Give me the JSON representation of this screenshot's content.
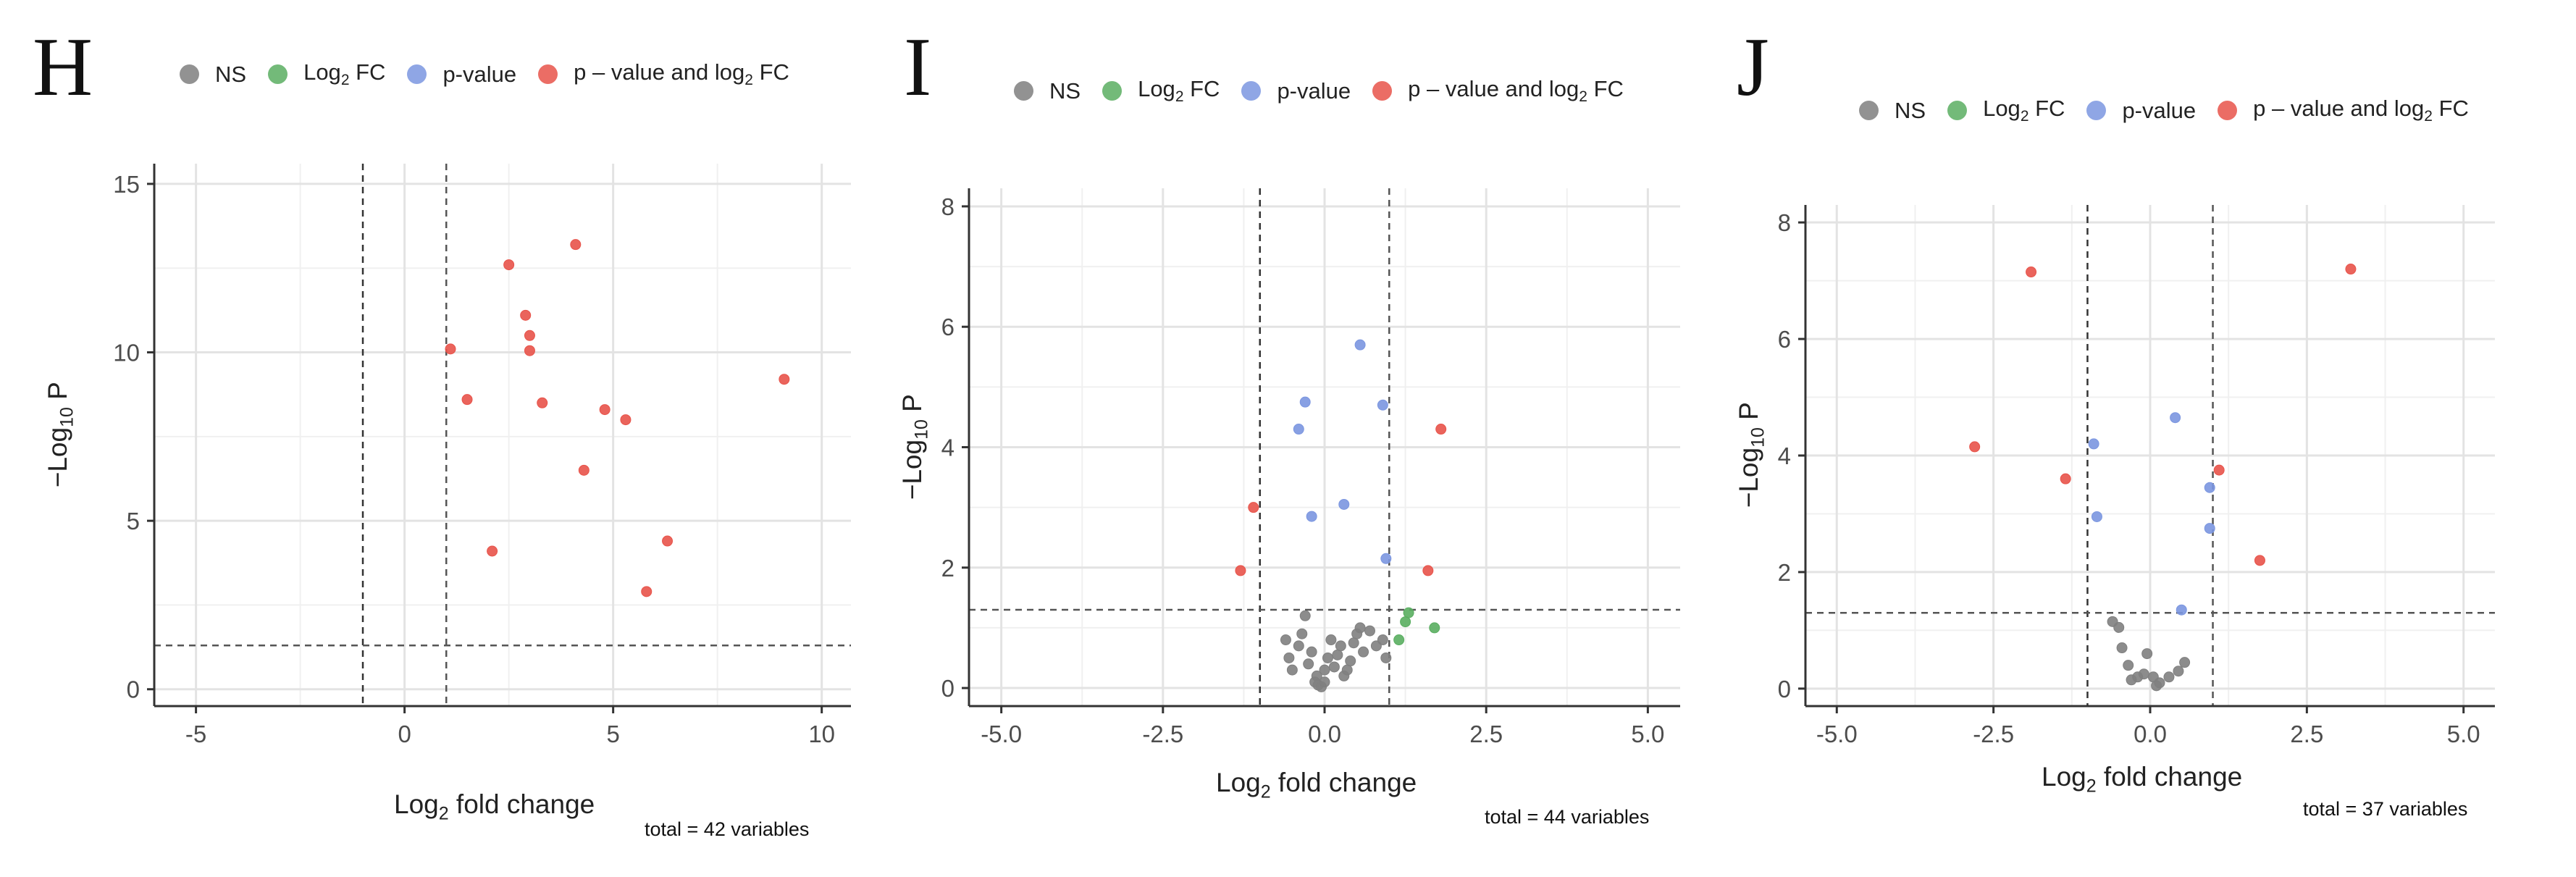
{
  "chart_data": [
    {
      "panel": "H",
      "type": "scatter",
      "legend": {
        "position": "top",
        "items": [
          {
            "label": "NS",
            "color": "#7f7f7f"
          },
          {
            "label_main": "Log",
            "label_sub": "2",
            "label_rest": " FC",
            "color": "#5aae61"
          },
          {
            "label": "p-value",
            "color": "#7b96e0"
          },
          {
            "label_main": "p – value and log",
            "label_sub": "2",
            "label_rest": " FC",
            "color": "#e8534a"
          }
        ]
      },
      "xlabel": {
        "main": "Log",
        "sub": "2",
        "rest": " fold change"
      },
      "ylabel": {
        "main": "−Log",
        "sub": "10",
        "rest": " P"
      },
      "xlim": [
        -6,
        10.7
      ],
      "ylim": [
        -0.5,
        15.6
      ],
      "xticks": [
        -5,
        0,
        5,
        10
      ],
      "xtick_labels": [
        "-5",
        "0",
        "5",
        "10"
      ],
      "yticks": [
        0,
        5,
        10,
        15
      ],
      "ytick_labels": [
        "0",
        "5",
        "10",
        "15"
      ],
      "vlines": [
        -1,
        1
      ],
      "hline": 1.3,
      "caption": "total = 42 variables",
      "series": [
        {
          "name": "p – value and log2 FC",
          "color": "#e8534a",
          "points": [
            [
              1.1,
              10.1
            ],
            [
              1.5,
              8.6
            ],
            [
              2.1,
              4.1
            ],
            [
              2.5,
              12.6
            ],
            [
              2.9,
              11.1
            ],
            [
              3.0,
              10.5
            ],
            [
              3.0,
              10.05
            ],
            [
              3.3,
              8.5
            ],
            [
              4.1,
              13.2
            ],
            [
              4.3,
              6.5
            ],
            [
              4.8,
              8.3
            ],
            [
              5.3,
              8.0
            ],
            [
              5.8,
              2.9
            ],
            [
              6.3,
              4.4
            ],
            [
              9.1,
              9.2
            ]
          ]
        }
      ]
    },
    {
      "panel": "I",
      "type": "scatter",
      "legend": {
        "position": "top",
        "items": [
          {
            "label": "NS",
            "color": "#7f7f7f"
          },
          {
            "label_main": "Log",
            "label_sub": "2",
            "label_rest": " FC",
            "color": "#5aae61"
          },
          {
            "label": "p-value",
            "color": "#7b96e0"
          },
          {
            "label_main": "p – value and log",
            "label_sub": "2",
            "label_rest": " FC",
            "color": "#e8534a"
          }
        ]
      },
      "xlabel": {
        "main": "Log",
        "sub": "2",
        "rest": " fold change"
      },
      "ylabel": {
        "main": "−Log",
        "sub": "10",
        "rest": " P"
      },
      "xlim": [
        -5.5,
        5.5
      ],
      "ylim": [
        -0.3,
        8.3
      ],
      "xticks": [
        -5,
        -2.5,
        0,
        2.5,
        5
      ],
      "xtick_labels": [
        "-5.0",
        "-2.5",
        "0.0",
        "2.5",
        "5.0"
      ],
      "yticks": [
        0,
        2,
        4,
        6,
        8
      ],
      "ytick_labels": [
        "0",
        "2",
        "4",
        "6",
        "8"
      ],
      "vlines": [
        -1,
        1
      ],
      "hline": 1.3,
      "caption": "total = 44 variables",
      "series": [
        {
          "name": "NS",
          "color": "#7f7f7f",
          "points": [
            [
              -0.6,
              0.8
            ],
            [
              -0.55,
              0.5
            ],
            [
              -0.5,
              0.3
            ],
            [
              -0.4,
              0.7
            ],
            [
              -0.35,
              0.9
            ],
            [
              -0.3,
              1.2
            ],
            [
              -0.25,
              0.4
            ],
            [
              -0.2,
              0.6
            ],
            [
              -0.15,
              0.1
            ],
            [
              -0.12,
              0.2
            ],
            [
              -0.1,
              0.05
            ],
            [
              -0.05,
              0.02
            ],
            [
              0.0,
              0.1
            ],
            [
              0.0,
              0.3
            ],
            [
              0.05,
              0.5
            ],
            [
              0.1,
              0.8
            ],
            [
              0.15,
              0.35
            ],
            [
              0.2,
              0.55
            ],
            [
              0.25,
              0.7
            ],
            [
              0.3,
              0.2
            ],
            [
              0.35,
              0.3
            ],
            [
              0.4,
              0.45
            ],
            [
              0.45,
              0.75
            ],
            [
              0.5,
              0.9
            ],
            [
              0.55,
              1.0
            ],
            [
              0.6,
              0.6
            ],
            [
              0.7,
              0.95
            ],
            [
              0.8,
              0.7
            ],
            [
              0.9,
              0.8
            ],
            [
              0.95,
              0.5
            ]
          ]
        },
        {
          "name": "Log2 FC",
          "color": "#5aae61",
          "points": [
            [
              1.15,
              0.8
            ],
            [
              1.25,
              1.1
            ],
            [
              1.3,
              1.25
            ],
            [
              1.7,
              1.0
            ]
          ]
        },
        {
          "name": "p-value",
          "color": "#7b96e0",
          "points": [
            [
              -0.4,
              4.3
            ],
            [
              -0.3,
              4.75
            ],
            [
              -0.2,
              2.85
            ],
            [
              0.3,
              3.05
            ],
            [
              0.55,
              5.7
            ],
            [
              0.9,
              4.7
            ],
            [
              0.95,
              2.15
            ]
          ]
        },
        {
          "name": "p – value and log2 FC",
          "color": "#e8534a",
          "points": [
            [
              -1.1,
              3.0
            ],
            [
              -1.3,
              1.95
            ],
            [
              1.6,
              1.95
            ],
            [
              1.8,
              4.3
            ]
          ]
        }
      ]
    },
    {
      "panel": "J",
      "type": "scatter",
      "legend": {
        "position": "top",
        "items": [
          {
            "label": "NS",
            "color": "#7f7f7f"
          },
          {
            "label_main": "Log",
            "label_sub": "2",
            "label_rest": " FC",
            "color": "#5aae61"
          },
          {
            "label": "p-value",
            "color": "#7b96e0"
          },
          {
            "label_main": "p – value and log",
            "label_sub": "2",
            "label_rest": " FC",
            "color": "#e8534a"
          }
        ]
      },
      "xlabel": {
        "main": "Log",
        "sub": "2",
        "rest": " fold change"
      },
      "ylabel": {
        "main": "−Log",
        "sub": "10",
        "rest": " P"
      },
      "xlim": [
        -5.5,
        5.5
      ],
      "ylim": [
        -0.3,
        8.3
      ],
      "xticks": [
        -5,
        -2.5,
        0,
        2.5,
        5
      ],
      "xtick_labels": [
        "-5.0",
        "-2.5",
        "0.0",
        "2.5",
        "5.0"
      ],
      "yticks": [
        0,
        2,
        4,
        6,
        8
      ],
      "ytick_labels": [
        "0",
        "2",
        "4",
        "6",
        "8"
      ],
      "vlines": [
        -1,
        1
      ],
      "hline": 1.3,
      "caption": "total = 37 variables",
      "series": [
        {
          "name": "NS",
          "color": "#7f7f7f",
          "points": [
            [
              -0.6,
              1.15
            ],
            [
              -0.5,
              1.05
            ],
            [
              -0.45,
              0.7
            ],
            [
              -0.35,
              0.4
            ],
            [
              -0.3,
              0.15
            ],
            [
              -0.2,
              0.2
            ],
            [
              -0.1,
              0.25
            ],
            [
              -0.05,
              0.6
            ],
            [
              0.05,
              0.2
            ],
            [
              0.1,
              0.05
            ],
            [
              0.15,
              0.1
            ],
            [
              0.3,
              0.2
            ],
            [
              0.45,
              0.3
            ],
            [
              0.55,
              0.45
            ]
          ]
        },
        {
          "name": "p-value",
          "color": "#7b96e0",
          "points": [
            [
              -0.9,
              4.2
            ],
            [
              -0.85,
              2.95
            ],
            [
              0.4,
              4.65
            ],
            [
              0.5,
              1.35
            ],
            [
              0.95,
              3.45
            ],
            [
              0.95,
              2.75
            ]
          ]
        },
        {
          "name": "p – value and log2 FC",
          "color": "#e8534a",
          "points": [
            [
              -2.8,
              4.15
            ],
            [
              -1.9,
              7.15
            ],
            [
              -1.35,
              3.6
            ],
            [
              1.1,
              3.75
            ],
            [
              1.75,
              2.2
            ],
            [
              3.2,
              7.2
            ]
          ]
        }
      ]
    }
  ]
}
